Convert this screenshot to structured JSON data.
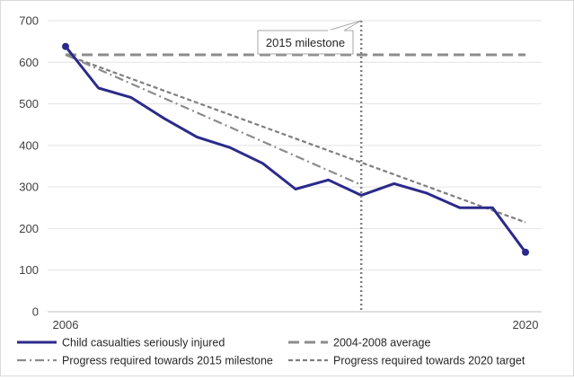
{
  "chart_data": {
    "type": "line",
    "title": "",
    "xlabel": "",
    "ylabel": "",
    "x_range": [
      2006,
      2020
    ],
    "x_tick_labels": [
      {
        "x": 2006,
        "label": "2006"
      },
      {
        "x": 2020,
        "label": "2020"
      }
    ],
    "ylim": [
      0,
      700
    ],
    "y_ticks": [
      0,
      100,
      200,
      300,
      400,
      500,
      600,
      700
    ],
    "grid": true,
    "legend_position": "bottom",
    "series": [
      {
        "name": "Child casualties seriously injured",
        "style": "solid",
        "color": "#2b2a8a",
        "markers_at_ends": true,
        "x": [
          2006,
          2007,
          2008,
          2009,
          2010,
          2011,
          2012,
          2013,
          2014,
          2015,
          2016,
          2017,
          2018,
          2019,
          2020
        ],
        "values": [
          638,
          538,
          515,
          465,
          420,
          395,
          357,
          295,
          317,
          280,
          308,
          285,
          250,
          250,
          143
        ]
      },
      {
        "name": "2004-2008 average",
        "style": "long-dash",
        "color": "#8c8c8c",
        "x": [
          2006,
          2020
        ],
        "values": [
          618,
          618
        ]
      },
      {
        "name": "Progress required towards 2015 milestone",
        "style": "dash-dot",
        "color": "#8c8c8c",
        "x": [
          2006,
          2015
        ],
        "values": [
          618,
          305
        ]
      },
      {
        "name": "Progress required towards 2020 target",
        "style": "short-dash",
        "color": "#7f7f7f",
        "x": [
          2006,
          2020
        ],
        "values": [
          618,
          215
        ]
      }
    ],
    "vertical_marker": {
      "x": 2015,
      "color": "#808080",
      "style": "dotted"
    },
    "annotations": [
      {
        "text": "2015 milestone",
        "x": 2015,
        "y": 700
      }
    ]
  }
}
